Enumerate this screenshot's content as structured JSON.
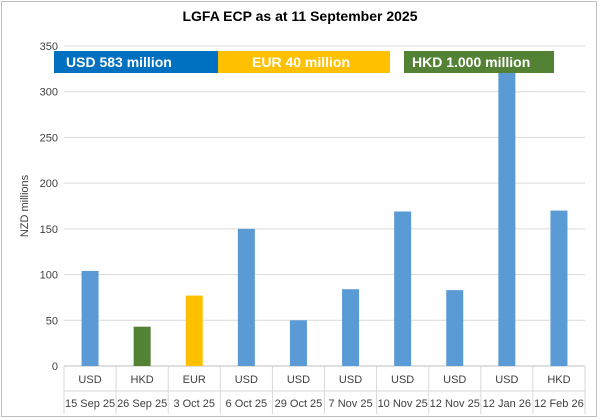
{
  "chart_data": {
    "type": "bar",
    "title": "LGFA ECP as at 11 September 2025",
    "ylabel": "NZD millions",
    "xlabel": "",
    "ylim": [
      0,
      350
    ],
    "yticks": [
      0,
      50,
      100,
      150,
      200,
      250,
      300,
      350
    ],
    "gridlines": true,
    "categories": [
      {
        "currency": "USD",
        "date": "15 Sep 25",
        "value": 104,
        "color": "#5b9bd5"
      },
      {
        "currency": "HKD",
        "date": "26 Sep 25",
        "value": 43,
        "color": "#548235"
      },
      {
        "currency": "EUR",
        "date": "3 Oct 25",
        "value": 77,
        "color": "#ffc000"
      },
      {
        "currency": "USD",
        "date": "6 Oct 25",
        "value": 150,
        "color": "#5b9bd5"
      },
      {
        "currency": "USD",
        "date": "29 Oct 25",
        "value": 50,
        "color": "#5b9bd5"
      },
      {
        "currency": "USD",
        "date": "7 Nov 25",
        "value": 84,
        "color": "#5b9bd5"
      },
      {
        "currency": "USD",
        "date": "10 Nov 25",
        "value": 169,
        "color": "#5b9bd5"
      },
      {
        "currency": "USD",
        "date": "12 Nov 25",
        "value": 83,
        "color": "#5b9bd5"
      },
      {
        "currency": "USD",
        "date": "12 Jan 26",
        "value": 325,
        "color": "#5b9bd5"
      },
      {
        "currency": "HKD",
        "date": "12 Feb 26",
        "value": 170,
        "color": "#5b9bd5"
      }
    ],
    "legend": [
      {
        "label": "USD 583 million",
        "color": "#0070c0"
      },
      {
        "label": "EUR 40 million",
        "color": "#ffc000"
      },
      {
        "label": "HKD 1.000 million",
        "color": "#548235"
      }
    ]
  }
}
